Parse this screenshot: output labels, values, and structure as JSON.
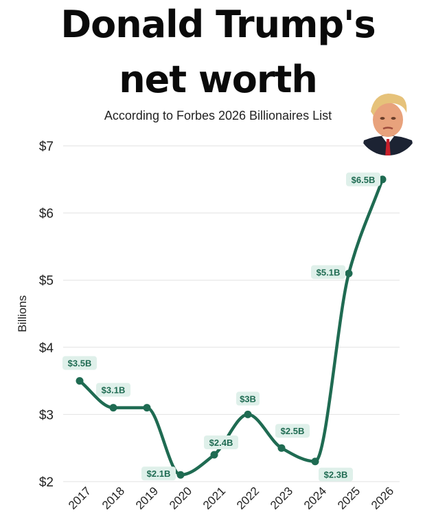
{
  "header": {
    "title_line1": "Donald Trump's",
    "title_line2": "net worth",
    "subtitle": "According to Forbes 2026 Billionaires List"
  },
  "colors": {
    "line": "#1f6b52",
    "label_bg": "#dff0ea",
    "grid": "#e2e2e2"
  },
  "chart_data": {
    "type": "line",
    "ylabel": "Billions",
    "ylim": [
      2,
      7
    ],
    "yticks": [
      2,
      3,
      4,
      5,
      6,
      7
    ],
    "ytick_labels": [
      "$2",
      "$3",
      "$4",
      "$5",
      "$6",
      "$7"
    ],
    "grid": true,
    "x": [
      "2017",
      "2018",
      "2019",
      "2020",
      "2021",
      "2022",
      "2023",
      "2024",
      "2025",
      "2026"
    ],
    "values": [
      3.5,
      3.1,
      3.1,
      2.1,
      2.4,
      3.0,
      2.5,
      2.3,
      5.1,
      6.5
    ],
    "data_labels": [
      "$3.5B",
      "$3.1B",
      "",
      "$2.1B",
      "$2.4B",
      "$3B",
      "$2.5B",
      "$2.3B",
      "$5.1B",
      "$6.5B"
    ]
  }
}
